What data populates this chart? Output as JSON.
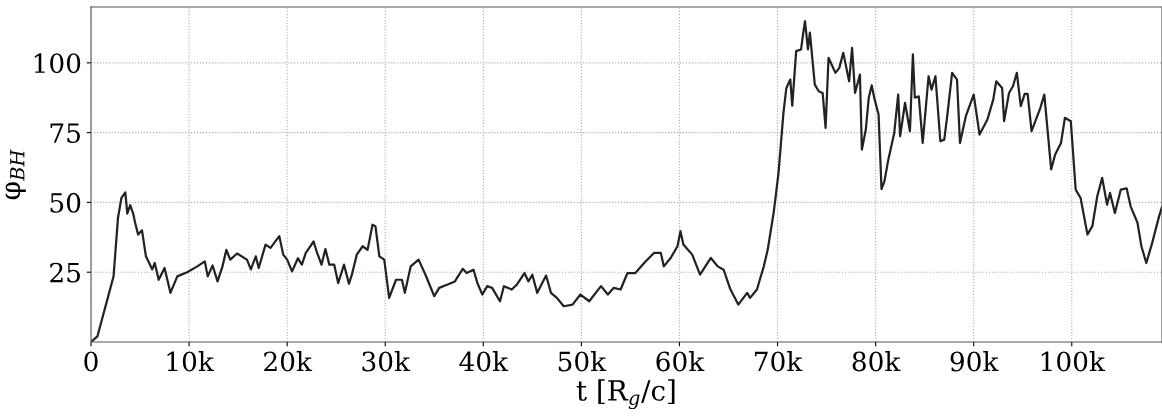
{
  "chart_data": {
    "type": "line",
    "xlabel": "t [R$_{g}$/c]",
    "ylabel": "φ$_{BH}$",
    "x": [
      0,
      650,
      2300,
      2750,
      3100,
      3500,
      3700,
      4000,
      4300,
      4500,
      4800,
      5200,
      5600,
      6250,
      6500,
      6900,
      7500,
      8100,
      8800,
      9800,
      10800,
      11600,
      11900,
      12400,
      12900,
      13400,
      13800,
      14200,
      14900,
      15900,
      16300,
      16800,
      17100,
      17800,
      18300,
      19200,
      19600,
      20000,
      20500,
      21100,
      21500,
      21900,
      22700,
      23000,
      23500,
      23900,
      24300,
      24800,
      25200,
      25800,
      26300,
      26600,
      27100,
      27700,
      28200,
      28700,
      29000,
      29400,
      29900,
      30400,
      31100,
      31700,
      32000,
      32600,
      33400,
      34100,
      35000,
      35500,
      36300,
      37100,
      37900,
      38300,
      39000,
      39400,
      39900,
      40400,
      40900,
      41700,
      42100,
      42900,
      43400,
      44200,
      44600,
      45000,
      45500,
      46400,
      46900,
      47500,
      48200,
      49100,
      49900,
      50800,
      52000,
      52700,
      53300,
      54000,
      54700,
      55500,
      56400,
      57400,
      58100,
      58400,
      59100,
      59800,
      60100,
      60400,
      61300,
      62100,
      63200,
      63900,
      64500,
      65200,
      66000,
      66900,
      67200,
      67900,
      68600,
      69000,
      69600,
      70100,
      70600,
      70900,
      71300,
      71500,
      71900,
      72400,
      72600,
      72800,
      73100,
      73300,
      73800,
      74200,
      74600,
      74900,
      75200,
      75900,
      76300,
      76700,
      77300,
      77600,
      77900,
      78400,
      78600,
      79000,
      79300,
      79600,
      79900,
      80300,
      80600,
      80900,
      81300,
      81900,
      82300,
      82500,
      83000,
      83500,
      83800,
      84000,
      84400,
      84800,
      85400,
      85700,
      86100,
      86600,
      87000,
      87300,
      87800,
      88300,
      88600,
      89200,
      90000,
      90600,
      91400,
      92000,
      92300,
      92900,
      93100,
      93600,
      94000,
      94400,
      94800,
      95200,
      95500,
      95900,
      96800,
      97200,
      97900,
      98300,
      98900,
      99300,
      99900,
      100400,
      100900,
      101600,
      102100,
      102600,
      103100,
      103600,
      103900,
      104400,
      105000,
      105600,
      106000,
      106700,
      107100,
      107600,
      108200,
      108900,
      109200
    ],
    "series": [
      {
        "color": "#222222",
        "values": [
          0,
          2,
          23.5,
          44.4,
          51.6,
          53.6,
          46,
          49,
          46,
          42.7,
          38.5,
          40,
          30.7,
          26,
          28.3,
          22.3,
          26.5,
          17.6,
          23.5,
          25,
          27,
          28.9,
          23.5,
          27.4,
          21.7,
          27,
          33,
          29.5,
          31.7,
          29.5,
          26,
          30.7,
          26.5,
          34.9,
          33.7,
          37.9,
          31.3,
          29.5,
          25.3,
          30,
          27.7,
          31.9,
          36,
          32.5,
          27.7,
          33.3,
          27.7,
          27.7,
          21.1,
          27.7,
          20.9,
          24.1,
          31.3,
          34.3,
          33,
          42,
          41.5,
          30.7,
          29.5,
          15.8,
          22.3,
          22.3,
          17.6,
          27.1,
          29.5,
          24.1,
          16.4,
          19.4,
          20.5,
          21.7,
          26.2,
          24.7,
          25.9,
          21.1,
          17,
          20,
          19.4,
          14.6,
          20,
          18.8,
          20.5,
          24.7,
          21.7,
          24.1,
          17.6,
          23.8,
          17.6,
          15.8,
          12.8,
          13.4,
          17,
          14.6,
          20,
          17,
          19.4,
          18.8,
          24.7,
          24.7,
          28.3,
          31.9,
          31.9,
          27.1,
          30.1,
          34.3,
          39.7,
          34.9,
          31.3,
          24.1,
          30.1,
          27.1,
          25.9,
          18.8,
          13.4,
          17.6,
          15.8,
          18.8,
          27.1,
          33.1,
          46.2,
          60.6,
          82,
          91,
          94,
          84.7,
          104.2,
          104.8,
          110.2,
          114.9,
          104.8,
          110.8,
          92.2,
          89.8,
          89.2,
          76.7,
          101.8,
          96.4,
          98.2,
          103.6,
          93.4,
          105.4,
          89.2,
          95.8,
          68.9,
          76.1,
          87.5,
          91.9,
          86.9,
          81.5,
          54.8,
          57.6,
          65.4,
          74.9,
          88.6,
          73.7,
          85.7,
          75.5,
          103,
          87.5,
          88,
          71.3,
          95.2,
          90.4,
          95.2,
          71.9,
          72.5,
          80.9,
          96.4,
          94,
          71.3,
          80.9,
          88.6,
          74.3,
          79.7,
          86.9,
          93.4,
          91,
          79.1,
          89.2,
          91.6,
          96.4,
          84.5,
          88.9,
          88.9,
          75.5,
          83.9,
          88.6,
          61.8,
          67.1,
          71.3,
          80.3,
          79.1,
          54.6,
          51.6,
          38.5,
          41.5,
          52.2,
          58.8,
          49.2,
          53.4,
          46.2,
          54.6,
          55,
          48.6,
          42.7,
          34.3,
          28.3,
          35.5,
          45,
          48.4
        ]
      }
    ],
    "xlim": [
      0,
      109200
    ],
    "ylim": [
      0,
      120
    ],
    "xticks": [
      0,
      {
        "value": 10000,
        "label": "10k"
      },
      {
        "value": 20000,
        "label": "20k"
      },
      {
        "value": 30000,
        "label": "30k"
      },
      {
        "value": 40000,
        "label": "40k"
      },
      {
        "value": 50000,
        "label": "50k"
      },
      {
        "value": 60000,
        "label": "60k"
      },
      {
        "value": 70000,
        "label": "70k"
      },
      {
        "value": 80000,
        "label": "80k"
      },
      {
        "value": 90000,
        "label": "90k"
      },
      {
        "value": 100000,
        "label": "100k"
      }
    ],
    "yticks": [
      25,
      50,
      75,
      100
    ],
    "grid": true,
    "line_style": "solid",
    "marker": "none",
    "legend": false
  }
}
